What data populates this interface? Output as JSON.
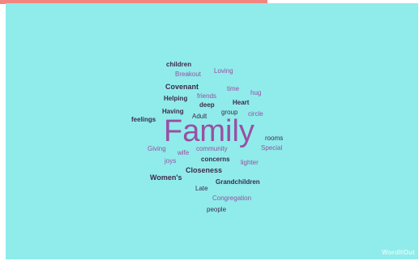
{
  "word_cloud": {
    "words": [
      "children",
      "Breakout",
      "Loving",
      "Covenant",
      "time",
      "hug",
      "Helping",
      "friends",
      "Heart",
      "deep",
      "Having",
      "group",
      "Adult",
      "circle",
      "feelings",
      "Family",
      "rooms",
      "Giving",
      "wife",
      "community",
      "Special",
      "joys",
      "concerns",
      "lighter",
      "Closeness",
      "Women's",
      "Grandchildren",
      "Late",
      "Congregation",
      "people"
    ]
  },
  "branding": {
    "label": "WordItOut"
  }
}
